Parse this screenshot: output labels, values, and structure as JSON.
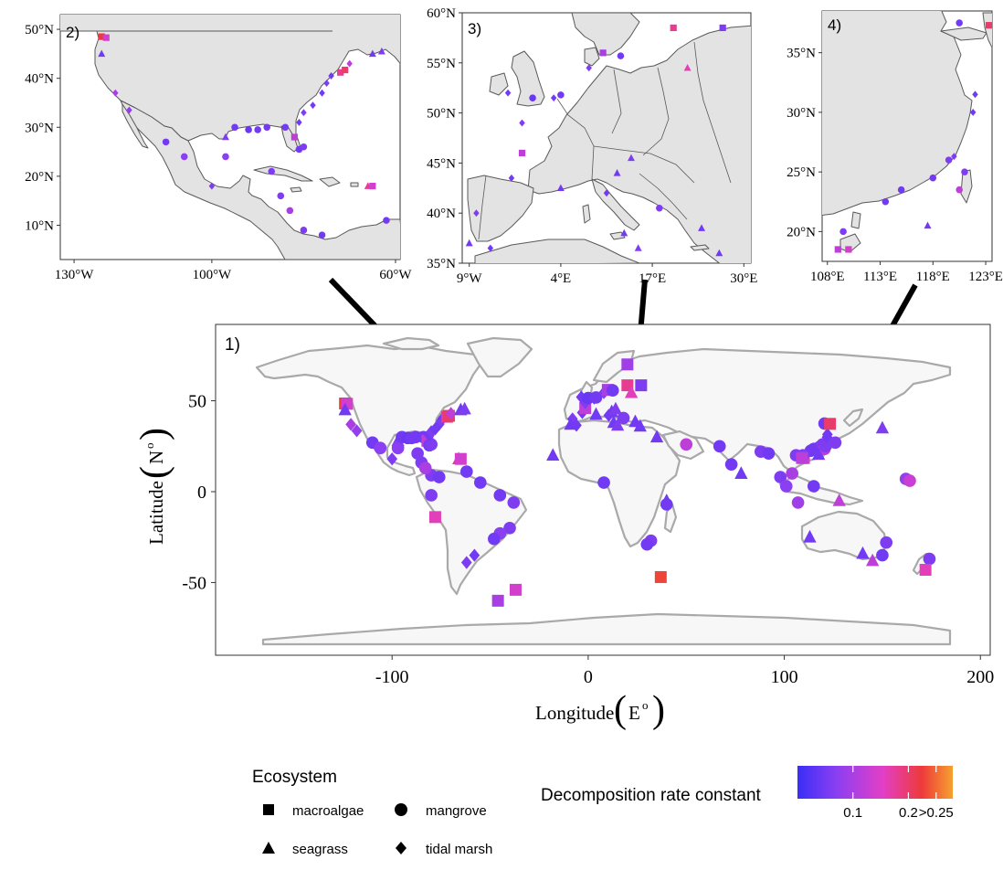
{
  "main": {
    "panel_label": "1)",
    "x_label": "Longitude",
    "x_unit": "E",
    "x_unit_sup": "o",
    "y_label": "Latitude",
    "y_unit": "N",
    "y_unit_sup": "o",
    "x_ticks": [
      -100,
      0,
      100,
      200
    ],
    "y_ticks": [
      50,
      0,
      -50
    ],
    "x_range": [
      -190,
      205
    ],
    "y_range": [
      -90,
      92
    ]
  },
  "insets": [
    {
      "label": "2)",
      "x_range": [
        -133,
        -59
      ],
      "y_range": [
        3,
        53
      ],
      "x_ticks": [
        {
          "v": -130,
          "t": "130°W"
        },
        {
          "v": -100,
          "t": "100°W"
        },
        {
          "v": -60,
          "t": "60°W"
        }
      ],
      "y_ticks": [
        {
          "v": 50,
          "t": "50°N"
        },
        {
          "v": 40,
          "t": "40°N"
        },
        {
          "v": 30,
          "t": "30°N"
        },
        {
          "v": 20,
          "t": "20°N"
        },
        {
          "v": 10,
          "t": "10°N"
        }
      ]
    },
    {
      "label": "3)",
      "x_range": [
        -10,
        31
      ],
      "y_range": [
        35,
        60
      ],
      "x_ticks": [
        {
          "v": -9,
          "t": "9°W"
        },
        {
          "v": 4,
          "t": "4°E"
        },
        {
          "v": 17,
          "t": "17°E"
        },
        {
          "v": 30,
          "t": "30°E"
        }
      ],
      "y_ticks": [
        {
          "v": 60,
          "t": "60°N"
        },
        {
          "v": 55,
          "t": "55°N"
        },
        {
          "v": 50,
          "t": "50°N"
        },
        {
          "v": 45,
          "t": "45°N"
        },
        {
          "v": 40,
          "t": "40°N"
        },
        {
          "v": 35,
          "t": "35°N"
        }
      ]
    },
    {
      "label": "4)",
      "x_range": [
        107.5,
        123.6
      ],
      "y_range": [
        17.5,
        38.5
      ],
      "x_ticks": [
        {
          "v": 108,
          "t": "108°E"
        },
        {
          "v": 113,
          "t": "113°E"
        },
        {
          "v": 118,
          "t": "118°E"
        },
        {
          "v": 123,
          "t": "123°E"
        }
      ],
      "y_ticks": [
        {
          "v": 35,
          "t": "35°N"
        },
        {
          "v": 30,
          "t": "30°N"
        },
        {
          "v": 25,
          "t": "25°N"
        },
        {
          "v": 20,
          "t": "20°N"
        }
      ]
    }
  ],
  "legend": {
    "ecosystem_title": "Ecosystem",
    "items": [
      {
        "label": "macroalgae",
        "shape": "square"
      },
      {
        "label": "mangrove",
        "shape": "circle"
      },
      {
        "label": "seagrass",
        "shape": "triangle"
      },
      {
        "label": "tidal marsh",
        "shape": "diamond"
      }
    ],
    "colorbar_title": "Decomposition rate constant",
    "colorbar_ticks": [
      {
        "v": 0.1,
        "t": "0.1"
      },
      {
        "v": 0.2,
        "t": "0.2"
      },
      {
        "v": 0.25,
        "t": ">0.25"
      }
    ],
    "colorbar_range": [
      0,
      0.28
    ],
    "colors": [
      "#3a2ef5",
      "#8a3ff2",
      "#e23fc6",
      "#ee3a3a",
      "#f5a030"
    ]
  },
  "chart_data": {
    "type": "scatter",
    "x_name": "Longitude",
    "y_name": "Latitude",
    "points": [
      {
        "lon": -124,
        "lat": 48.5,
        "eco": "macroalgae",
        "k": 0.22
      },
      {
        "lon": -123,
        "lat": 48.3,
        "eco": "macroalgae",
        "k": 0.14
      },
      {
        "lon": -124,
        "lat": 45,
        "eco": "seagrass",
        "k": 0.05
      },
      {
        "lon": -121,
        "lat": 37,
        "eco": "tidal marsh",
        "k": 0.1
      },
      {
        "lon": -118,
        "lat": 33.5,
        "eco": "tidal marsh",
        "k": 0.08
      },
      {
        "lon": -110,
        "lat": 27,
        "eco": "mangrove",
        "k": 0.05
      },
      {
        "lon": -106,
        "lat": 24,
        "eco": "mangrove",
        "k": 0.07
      },
      {
        "lon": -100,
        "lat": 18,
        "eco": "tidal marsh",
        "k": 0.06
      },
      {
        "lon": -97,
        "lat": 28,
        "eco": "seagrass",
        "k": 0.06
      },
      {
        "lon": -97,
        "lat": 24,
        "eco": "mangrove",
        "k": 0.07
      },
      {
        "lon": -95,
        "lat": 30,
        "eco": "mangrove",
        "k": 0.05
      },
      {
        "lon": -92,
        "lat": 29.5,
        "eco": "mangrove",
        "k": 0.04
      },
      {
        "lon": -90,
        "lat": 29.5,
        "eco": "mangrove",
        "k": 0.05
      },
      {
        "lon": -88,
        "lat": 30,
        "eco": "mangrove",
        "k": 0.05
      },
      {
        "lon": -87,
        "lat": 21,
        "eco": "mangrove",
        "k": 0.06
      },
      {
        "lon": -85,
        "lat": 16,
        "eco": "mangrove",
        "k": 0.06
      },
      {
        "lon": -84,
        "lat": 30,
        "eco": "mangrove",
        "k": 0.05
      },
      {
        "lon": -82,
        "lat": 28,
        "eco": "macroalgae",
        "k": 0.12
      },
      {
        "lon": -81,
        "lat": 25.5,
        "eco": "mangrove",
        "k": 0.05
      },
      {
        "lon": -80,
        "lat": 26,
        "eco": "mangrove",
        "k": 0.06
      },
      {
        "lon": -81,
        "lat": 31,
        "eco": "tidal marsh",
        "k": 0.05
      },
      {
        "lon": -80,
        "lat": 33,
        "eco": "tidal marsh",
        "k": 0.06
      },
      {
        "lon": -78,
        "lat": 34.5,
        "eco": "tidal marsh",
        "k": 0.05
      },
      {
        "lon": -76,
        "lat": 37,
        "eco": "tidal marsh",
        "k": 0.05
      },
      {
        "lon": -75,
        "lat": 39,
        "eco": "tidal marsh",
        "k": 0.06
      },
      {
        "lon": -74,
        "lat": 40.5,
        "eco": "tidal marsh",
        "k": 0.05
      },
      {
        "lon": -72,
        "lat": 41.2,
        "eco": "macroalgae",
        "k": 0.18
      },
      {
        "lon": -71,
        "lat": 41.7,
        "eco": "macroalgae",
        "k": 0.2
      },
      {
        "lon": -70,
        "lat": 43,
        "eco": "tidal marsh",
        "k": 0.12
      },
      {
        "lon": -65,
        "lat": 45,
        "eco": "seagrass",
        "k": 0.05
      },
      {
        "lon": -63,
        "lat": 45.5,
        "eco": "seagrass",
        "k": 0.06
      },
      {
        "lon": -66,
        "lat": 18,
        "eco": "seagrass",
        "k": 0.18
      },
      {
        "lon": -65,
        "lat": 18,
        "eco": "macroalgae",
        "k": 0.14
      },
      {
        "lon": -62,
        "lat": 11,
        "eco": "mangrove",
        "k": 0.05
      },
      {
        "lon": -80,
        "lat": 9,
        "eco": "mangrove",
        "k": 0.06
      },
      {
        "lon": -83,
        "lat": 13,
        "eco": "mangrove",
        "k": 0.1
      },
      {
        "lon": -76,
        "lat": 8,
        "eco": "mangrove",
        "k": 0.05
      },
      {
        "lon": -80,
        "lat": -2,
        "eco": "mangrove",
        "k": 0.06
      },
      {
        "lon": -78,
        "lat": -14,
        "eco": "macroalgae",
        "k": 0.16
      },
      {
        "lon": -55,
        "lat": 5,
        "eco": "mangrove",
        "k": 0.05
      },
      {
        "lon": -45,
        "lat": -2,
        "eco": "mangrove",
        "k": 0.05
      },
      {
        "lon": -38,
        "lat": -6,
        "eco": "mangrove",
        "k": 0.06
      },
      {
        "lon": -40,
        "lat": -20,
        "eco": "mangrove",
        "k": 0.06
      },
      {
        "lon": -45,
        "lat": -23,
        "eco": "mangrove",
        "k": 0.07
      },
      {
        "lon": -48,
        "lat": -26,
        "eco": "mangrove",
        "k": 0.05
      },
      {
        "lon": -58,
        "lat": -35,
        "eco": "tidal marsh",
        "k": 0.05
      },
      {
        "lon": -62,
        "lat": -39,
        "eco": "tidal marsh",
        "k": 0.06
      },
      {
        "lon": -46,
        "lat": -60,
        "eco": "macroalgae",
        "k": 0.1
      },
      {
        "lon": -37,
        "lat": -54,
        "eco": "macroalgae",
        "k": 0.14
      },
      {
        "lon": -8,
        "lat": 40,
        "eco": "tidal marsh",
        "k": 0.06
      },
      {
        "lon": -9,
        "lat": 37,
        "eco": "seagrass",
        "k": 0.05
      },
      {
        "lon": -6,
        "lat": 36.5,
        "eco": "tidal marsh",
        "k": 0.05
      },
      {
        "lon": -3,
        "lat": 43.5,
        "eco": "tidal marsh",
        "k": 0.05
      },
      {
        "lon": -1.5,
        "lat": 46,
        "eco": "macroalgae",
        "k": 0.12
      },
      {
        "lon": -1.5,
        "lat": 49,
        "eco": "tidal marsh",
        "k": 0.06
      },
      {
        "lon": -3.5,
        "lat": 52,
        "eco": "tidal marsh",
        "k": 0.05
      },
      {
        "lon": 0,
        "lat": 51.5,
        "eco": "mangrove",
        "k": 0.04
      },
      {
        "lon": 4,
        "lat": 42.5,
        "eco": "seagrass",
        "k": 0.05
      },
      {
        "lon": 3,
        "lat": 51.5,
        "eco": "tidal marsh",
        "k": 0.05
      },
      {
        "lon": 4,
        "lat": 51.8,
        "eco": "mangrove",
        "k": 0.05
      },
      {
        "lon": 8,
        "lat": 54.5,
        "eco": "tidal marsh",
        "k": 0.06
      },
      {
        "lon": 10,
        "lat": 56,
        "eco": "macroalgae",
        "k": 0.1
      },
      {
        "lon": 12.5,
        "lat": 55.7,
        "eco": "mangrove",
        "k": 0.05
      },
      {
        "lon": 12,
        "lat": 44,
        "eco": "seagrass",
        "k": 0.05
      },
      {
        "lon": 10.5,
        "lat": 42,
        "eco": "tidal marsh",
        "k": 0.05
      },
      {
        "lon": 14,
        "lat": 45.5,
        "eco": "seagrass",
        "k": 0.06
      },
      {
        "lon": 13,
        "lat": 38,
        "eco": "seagrass",
        "k": 0.05
      },
      {
        "lon": 15,
        "lat": 36.5,
        "eco": "seagrass",
        "k": 0.06
      },
      {
        "lon": 18,
        "lat": 40.5,
        "eco": "mangrove",
        "k": 0.06
      },
      {
        "lon": 20,
        "lat": 58.5,
        "eco": "macroalgae",
        "k": 0.18
      },
      {
        "lon": 22,
        "lat": 54.5,
        "eco": "seagrass",
        "k": 0.16
      },
      {
        "lon": 24,
        "lat": 38.5,
        "eco": "seagrass",
        "k": 0.05
      },
      {
        "lon": 26.5,
        "lat": 36,
        "eco": "seagrass",
        "k": 0.05
      },
      {
        "lon": 27,
        "lat": 58.5,
        "eco": "macroalgae",
        "k": 0.06
      },
      {
        "lon": 20,
        "lat": 70,
        "eco": "macroalgae",
        "k": 0.09
      },
      {
        "lon": 35,
        "lat": 30,
        "eco": "seagrass",
        "k": 0.05
      },
      {
        "lon": -18,
        "lat": 20,
        "eco": "seagrass",
        "k": 0.05
      },
      {
        "lon": 8,
        "lat": 5,
        "eco": "mangrove",
        "k": 0.05
      },
      {
        "lon": 40,
        "lat": -5,
        "eco": "seagrass",
        "k": 0.05
      },
      {
        "lon": 40,
        "lat": -7,
        "eco": "mangrove",
        "k": 0.05
      },
      {
        "lon": 32,
        "lat": -27,
        "eco": "mangrove",
        "k": 0.06
      },
      {
        "lon": 30,
        "lat": -29,
        "eco": "mangrove",
        "k": 0.05
      },
      {
        "lon": 37,
        "lat": -47,
        "eco": "macroalgae",
        "k": 0.23
      },
      {
        "lon": 50,
        "lat": 26,
        "eco": "mangrove",
        "k": 0.12
      },
      {
        "lon": 67,
        "lat": 25,
        "eco": "mangrove",
        "k": 0.05
      },
      {
        "lon": 73,
        "lat": 15,
        "eco": "mangrove",
        "k": 0.05
      },
      {
        "lon": 78,
        "lat": 10,
        "eco": "seagrass",
        "k": 0.05
      },
      {
        "lon": 88,
        "lat": 22,
        "eco": "mangrove",
        "k": 0.06
      },
      {
        "lon": 92,
        "lat": 21,
        "eco": "mangrove",
        "k": 0.05
      },
      {
        "lon": 98,
        "lat": 8,
        "eco": "mangrove",
        "k": 0.06
      },
      {
        "lon": 101,
        "lat": 3,
        "eco": "mangrove",
        "k": 0.07
      },
      {
        "lon": 104,
        "lat": 10,
        "eco": "mangrove",
        "k": 0.1
      },
      {
        "lon": 106,
        "lat": 20,
        "eco": "mangrove",
        "k": 0.06
      },
      {
        "lon": 107,
        "lat": -6,
        "eco": "mangrove",
        "k": 0.09
      },
      {
        "lon": 110,
        "lat": 18.5,
        "eco": "macroalgae",
        "k": 0.14
      },
      {
        "lon": 113.5,
        "lat": 22.5,
        "eco": "mangrove",
        "k": 0.05
      },
      {
        "lon": 115,
        "lat": 23.5,
        "eco": "mangrove",
        "k": 0.05
      },
      {
        "lon": 118,
        "lat": 24.5,
        "eco": "mangrove",
        "k": 0.05
      },
      {
        "lon": 119.5,
        "lat": 26,
        "eco": "mangrove",
        "k": 0.06
      },
      {
        "lon": 120,
        "lat": 26.3,
        "eco": "tidal marsh",
        "k": 0.06
      },
      {
        "lon": 120.5,
        "lat": 23.5,
        "eco": "mangrove",
        "k": 0.12
      },
      {
        "lon": 121,
        "lat": 25,
        "eco": "mangrove",
        "k": 0.06
      },
      {
        "lon": 121.8,
        "lat": 30,
        "eco": "tidal marsh",
        "k": 0.05
      },
      {
        "lon": 122,
        "lat": 31.5,
        "eco": "tidal marsh",
        "k": 0.05
      },
      {
        "lon": 120.5,
        "lat": 37.5,
        "eco": "mangrove",
        "k": 0.05
      },
      {
        "lon": 123.3,
        "lat": 37.3,
        "eco": "macroalgae",
        "k": 0.2
      },
      {
        "lon": 117.5,
        "lat": 20.5,
        "eco": "seagrass",
        "k": 0.05
      },
      {
        "lon": 109.5,
        "lat": 20,
        "eco": "mangrove",
        "k": 0.06
      },
      {
        "lon": 109,
        "lat": 18.5,
        "eco": "macroalgae",
        "k": 0.12
      },
      {
        "lon": 126,
        "lat": 27,
        "eco": "mangrove",
        "k": 0.06
      },
      {
        "lon": 128,
        "lat": -5,
        "eco": "seagrass",
        "k": 0.12
      },
      {
        "lon": 115,
        "lat": 3,
        "eco": "mangrove",
        "k": 0.05
      },
      {
        "lon": 113,
        "lat": -25,
        "eco": "seagrass",
        "k": 0.05
      },
      {
        "lon": 140,
        "lat": -34,
        "eco": "seagrass",
        "k": 0.05
      },
      {
        "lon": 145,
        "lat": -38,
        "eco": "seagrass",
        "k": 0.12
      },
      {
        "lon": 150,
        "lat": -35,
        "eco": "mangrove",
        "k": 0.05
      },
      {
        "lon": 152,
        "lat": -28,
        "eco": "mangrove",
        "k": 0.06
      },
      {
        "lon": 150,
        "lat": 35,
        "eco": "seagrass",
        "k": 0.06
      },
      {
        "lon": 162,
        "lat": 7,
        "eco": "mangrove",
        "k": 0.08
      },
      {
        "lon": 164,
        "lat": 6,
        "eco": "mangrove",
        "k": 0.13
      },
      {
        "lon": 174,
        "lat": -37,
        "eco": "mangrove",
        "k": 0.06
      },
      {
        "lon": 172,
        "lat": -43,
        "eco": "macroalgae",
        "k": 0.16
      }
    ]
  }
}
